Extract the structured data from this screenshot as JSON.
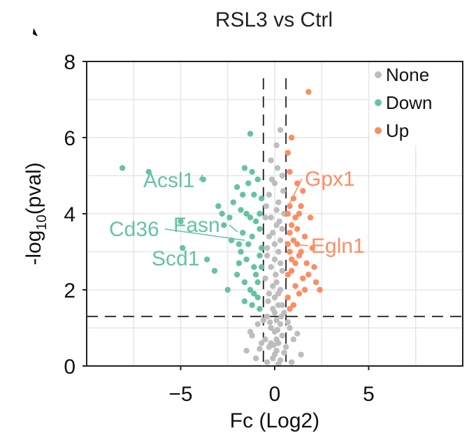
{
  "chart_data": {
    "type": "scatter",
    "title": "RSL3 vs Ctrl",
    "xlabel": "Fc (Log2)",
    "ylabel_main": "-log",
    "ylabel_sub": "10",
    "ylabel_rest": "(pval)",
    "xlim": [
      -10,
      10
    ],
    "ylim": [
      0,
      8
    ],
    "x_ticks": [
      -5,
      0,
      5
    ],
    "x_tick_labels": [
      "−5",
      "0",
      "5"
    ],
    "y_ticks": [
      0,
      2,
      4,
      6,
      8
    ],
    "y_tick_labels": [
      "0",
      "2",
      "4",
      "6",
      "8"
    ],
    "thresholds": {
      "fc": [
        -0.6,
        0.6
      ],
      "pval_log": 1.3
    },
    "legend": {
      "position": "top-right",
      "entries": [
        {
          "label": "None",
          "color": "#bdbdbd"
        },
        {
          "label": "Down",
          "color": "#66c2a5"
        },
        {
          "label": "Up",
          "color": "#fc8d62"
        }
      ]
    },
    "colors": {
      "None": "#bdbdbd",
      "Down": "#66c2a5",
      "Up": "#fc8d62",
      "grid": "#e6e6e6",
      "frame": "#222222"
    },
    "series": [
      {
        "name": "Up",
        "points": [
          [
            1.8,
            7.2
          ],
          [
            0.9,
            6.0
          ],
          [
            0.7,
            5.6
          ],
          [
            0.8,
            5.1
          ],
          [
            1.2,
            4.8
          ],
          [
            1.5,
            4.6
          ],
          [
            1.0,
            4.4
          ],
          [
            1.4,
            4.2
          ],
          [
            1.9,
            3.9
          ],
          [
            1.2,
            3.6
          ],
          [
            1.6,
            3.4
          ],
          [
            1.0,
            3.3
          ],
          [
            2.0,
            3.1
          ],
          [
            1.3,
            2.9
          ],
          [
            1.7,
            2.7
          ],
          [
            0.9,
            2.5
          ],
          [
            1.5,
            2.3
          ],
          [
            2.2,
            2.2
          ],
          [
            2.4,
            2.0
          ],
          [
            1.1,
            2.1
          ],
          [
            0.8,
            3.0
          ],
          [
            0.7,
            4.0
          ],
          [
            1.1,
            3.9
          ],
          [
            0.8,
            3.5
          ],
          [
            0.9,
            2.8
          ],
          [
            0.7,
            1.8
          ],
          [
            1.3,
            1.9
          ],
          [
            1.8,
            2.4
          ],
          [
            2.1,
            2.6
          ],
          [
            1.0,
            1.6
          ],
          [
            0.8,
            1.5
          ],
          [
            0.7,
            2.4
          ],
          [
            1.4,
            3.0
          ],
          [
            0.9,
            3.7
          ],
          [
            1.2,
            3.2
          ],
          [
            1.6,
            2.0
          ],
          [
            0.7,
            3.2
          ],
          [
            1.1,
            2.7
          ],
          [
            0.8,
            4.2
          ],
          [
            1.3,
            4.0
          ]
        ]
      },
      {
        "name": "Down",
        "points": [
          [
            -8.1,
            5.2
          ],
          [
            -6.7,
            5.1
          ],
          [
            -5.0,
            3.8
          ],
          [
            -4.9,
            3.1
          ],
          [
            -3.8,
            4.9
          ],
          [
            -3.6,
            2.8
          ],
          [
            -3.2,
            2.5
          ],
          [
            -3.0,
            4.2
          ],
          [
            -2.7,
            3.7
          ],
          [
            -2.5,
            2.0
          ],
          [
            -2.3,
            3.3
          ],
          [
            -2.0,
            4.7
          ],
          [
            -1.8,
            3.0
          ],
          [
            -1.6,
            2.2
          ],
          [
            -1.5,
            4.0
          ],
          [
            -1.3,
            6.1
          ],
          [
            -1.2,
            3.4
          ],
          [
            -1.1,
            2.6
          ],
          [
            -1.0,
            3.8
          ],
          [
            -0.9,
            1.8
          ],
          [
            -0.8,
            2.9
          ],
          [
            -0.7,
            4.4
          ],
          [
            -1.4,
            4.8
          ],
          [
            -2.2,
            4.3
          ],
          [
            -1.7,
            3.5
          ],
          [
            -1.9,
            2.7
          ],
          [
            -0.9,
            2.2
          ],
          [
            -1.2,
            1.6
          ],
          [
            -0.8,
            1.5
          ],
          [
            -1.6,
            1.7
          ],
          [
            -1.0,
            2.4
          ],
          [
            -0.7,
            3.1
          ],
          [
            -1.8,
            4.1
          ],
          [
            -2.8,
            4.0
          ],
          [
            -1.4,
            3.2
          ],
          [
            -1.1,
            4.5
          ],
          [
            -0.8,
            3.6
          ],
          [
            -1.5,
            2.8
          ],
          [
            -1.3,
            2.0
          ],
          [
            -0.9,
            4.9
          ],
          [
            -2.4,
            3.9
          ],
          [
            -1.6,
            5.2
          ],
          [
            -1.9,
            3.2
          ],
          [
            -1.1,
            1.9
          ],
          [
            -0.7,
            2.6
          ],
          [
            -0.8,
            4.0
          ],
          [
            -1.3,
            3.9
          ],
          [
            -2.0,
            2.4
          ],
          [
            -1.2,
            5.1
          ],
          [
            -1.7,
            4.5
          ]
        ]
      },
      {
        "name": "None",
        "points": [
          [
            0.3,
            6.2
          ],
          [
            0.1,
            5.8
          ],
          [
            -0.2,
            5.4
          ],
          [
            0.4,
            5.0
          ],
          [
            0.0,
            4.8
          ],
          [
            -0.3,
            4.5
          ],
          [
            0.2,
            4.3
          ],
          [
            0.5,
            4.0
          ],
          [
            -0.5,
            3.9
          ],
          [
            0.1,
            3.7
          ],
          [
            -0.1,
            3.5
          ],
          [
            0.3,
            3.3
          ],
          [
            -0.4,
            3.1
          ],
          [
            0.2,
            3.0
          ],
          [
            0.0,
            2.8
          ],
          [
            -0.2,
            2.6
          ],
          [
            0.4,
            2.5
          ],
          [
            -0.5,
            2.3
          ],
          [
            0.1,
            2.2
          ],
          [
            0.3,
            2.0
          ],
          [
            -0.3,
            1.9
          ],
          [
            0.0,
            1.8
          ],
          [
            0.2,
            1.6
          ],
          [
            -0.1,
            1.5
          ],
          [
            0.5,
            1.4
          ],
          [
            -0.4,
            1.3
          ],
          [
            0.1,
            1.2
          ],
          [
            0.3,
            1.1
          ],
          [
            -0.2,
            1.0
          ],
          [
            0.0,
            0.9
          ],
          [
            0.4,
            0.8
          ],
          [
            -0.5,
            0.7
          ],
          [
            0.2,
            0.6
          ],
          [
            -0.3,
            0.5
          ],
          [
            0.1,
            0.4
          ],
          [
            0.0,
            0.3
          ],
          [
            -0.1,
            0.2
          ],
          [
            0.3,
            0.15
          ],
          [
            -0.4,
            0.1
          ],
          [
            0.2,
            0.05
          ],
          [
            -0.9,
            1.1
          ],
          [
            0.8,
            1.0
          ],
          [
            -1.2,
            0.8
          ],
          [
            1.0,
            0.7
          ],
          [
            -0.7,
            0.6
          ],
          [
            0.6,
            0.5
          ],
          [
            -1.5,
            0.4
          ],
          [
            1.4,
            0.3
          ],
          [
            -1.0,
            0.2
          ],
          [
            0.9,
            0.1
          ],
          [
            -0.6,
            1.2
          ],
          [
            0.7,
            1.15
          ],
          [
            -1.3,
            0.9
          ],
          [
            1.2,
            0.85
          ],
          [
            -0.8,
            0.45
          ],
          [
            0.5,
            0.35
          ],
          [
            -0.2,
            3.9
          ],
          [
            0.4,
            3.6
          ],
          [
            -0.3,
            3.4
          ],
          [
            0.1,
            4.1
          ],
          [
            0.2,
            1.9
          ],
          [
            -0.1,
            2.1
          ],
          [
            0.3,
            2.7
          ],
          [
            -0.4,
            2.9
          ],
          [
            0.0,
            3.2
          ],
          [
            0.1,
            0.7
          ],
          [
            -0.2,
            0.6
          ],
          [
            0.35,
            1.3
          ],
          [
            -0.35,
            1.7
          ],
          [
            0.05,
            2.4
          ],
          [
            0.45,
            4.6
          ],
          [
            -0.45,
            4.2
          ],
          [
            0.15,
            5.2
          ],
          [
            -0.15,
            4.9
          ],
          [
            0.25,
            3.8
          ],
          [
            0.0,
            1.4
          ],
          [
            0.15,
            0.95
          ],
          [
            -0.25,
            1.15
          ],
          [
            0.4,
            1.6
          ],
          [
            -0.05,
            0.55
          ]
        ]
      }
    ],
    "annotations": [
      {
        "label": "Acsl1",
        "color": "#66c2a5",
        "x": -3.75,
        "y": 4.8
      },
      {
        "label": "Fasn",
        "color": "#66c2a5",
        "x": -1.65,
        "y": 3.6
      },
      {
        "label": "Cd36",
        "color": "#66c2a5",
        "x": -5.2,
        "y": 3.5
      },
      {
        "label": "Scd1",
        "color": "#66c2a5",
        "x": -3.5,
        "y": 2.85
      },
      {
        "label": "Gpx1",
        "color": "#fc8d62",
        "x": 1.4,
        "y": 4.5
      },
      {
        "label": "Egln1",
        "color": "#fc8d62",
        "x": 1.45,
        "y": 3.2
      }
    ]
  }
}
